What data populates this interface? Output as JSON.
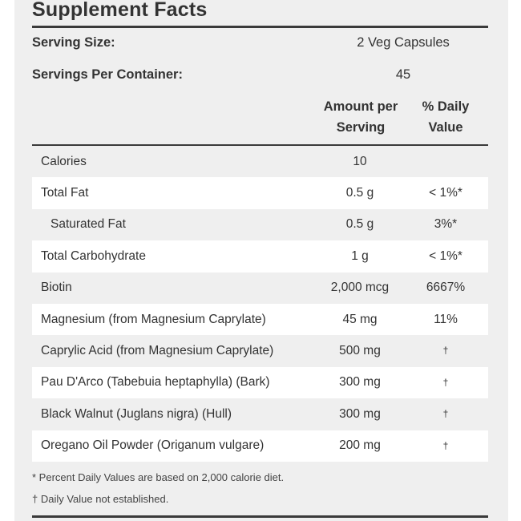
{
  "title": "Supplement Facts",
  "serving_size": {
    "label": "Serving Size:",
    "value": "2 Veg Capsules"
  },
  "servings_per_container": {
    "label": "Servings Per Container:",
    "value": "45"
  },
  "headers": {
    "amount_line1": "Amount per",
    "amount_line2": "Serving",
    "dv_line1": "% Daily",
    "dv_line2": "Value"
  },
  "rows": [
    {
      "name": "Calories",
      "amount": "10",
      "dv": ""
    },
    {
      "name": "Total Fat",
      "amount": "0.5 g",
      "dv": "< 1%*"
    },
    {
      "name": "Saturated Fat",
      "amount": "0.5 g",
      "dv": "3%*"
    },
    {
      "name": "Total Carbohydrate",
      "amount": "1 g",
      "dv": "< 1%*"
    },
    {
      "name": "Biotin",
      "amount": "2,000 mcg",
      "dv": "6667%"
    },
    {
      "name": "Magnesium (from Magnesium Caprylate)",
      "amount": "45 mg",
      "dv": "11%"
    },
    {
      "name": "Caprylic Acid (from Magnesium Caprylate)",
      "amount": "500 mg",
      "dv": "†"
    },
    {
      "name": "Pau D'Arco (Tabebuia heptaphylla) (Bark)",
      "amount": "300 mg",
      "dv": "†"
    },
    {
      "name": "Black Walnut (Juglans nigra) (Hull)",
      "amount": "300 mg",
      "dv": "†"
    },
    {
      "name": "Oregano Oil Powder (Origanum vulgare)",
      "amount": "200 mg",
      "dv": "†"
    }
  ],
  "footnotes": {
    "percent_dv": "* Percent Daily Values are based on 2,000 calorie diet.",
    "dagger": "† Daily Value not established."
  }
}
